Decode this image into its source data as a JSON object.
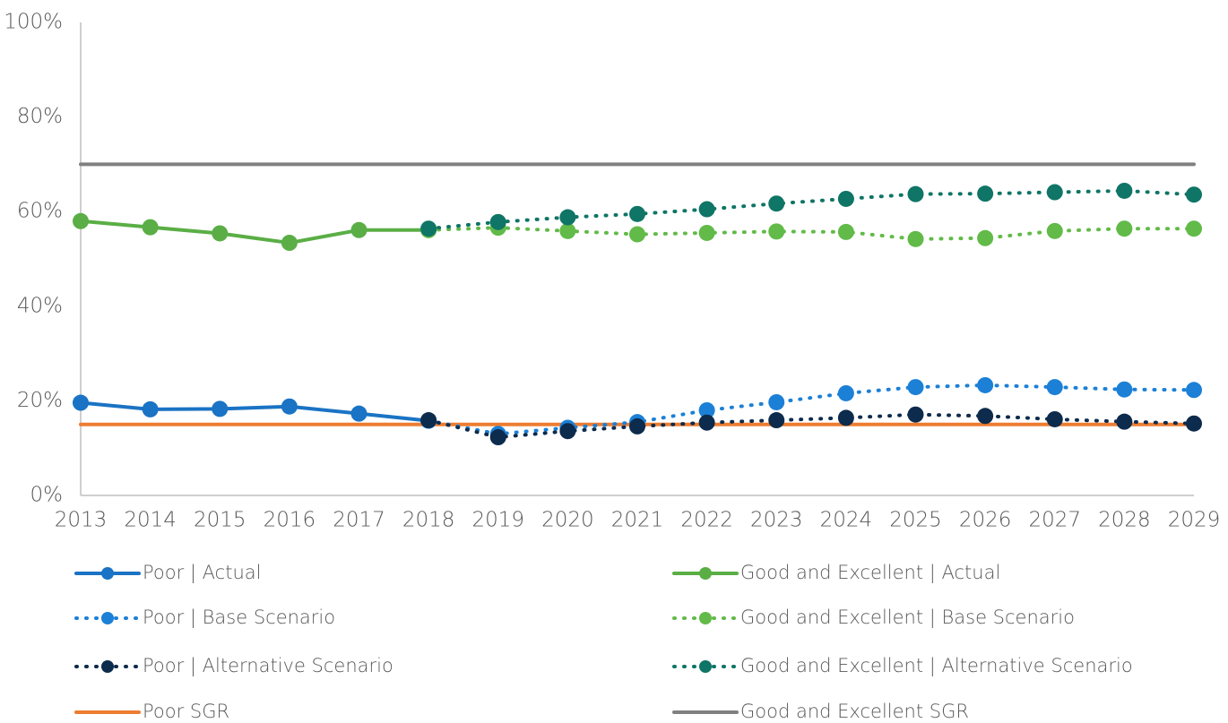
{
  "chart_data": {
    "type": "line",
    "categories": [
      "2013",
      "2014",
      "2015",
      "2016",
      "2017",
      "2018",
      "2019",
      "2020",
      "2021",
      "2022",
      "2023",
      "2024",
      "2025",
      "2026",
      "2027",
      "2028",
      "2029"
    ],
    "ylim": [
      0,
      100
    ],
    "yticks": [
      {
        "value": 0,
        "label": "0%"
      },
      {
        "value": 20,
        "label": "20%"
      },
      {
        "value": 40,
        "label": "40%"
      },
      {
        "value": 60,
        "label": "60%"
      },
      {
        "value": 80,
        "label": "80%"
      },
      {
        "value": 100,
        "label": "100%"
      }
    ],
    "grid": false,
    "legend": "bottom",
    "series": [
      {
        "name": "Poor | Actual",
        "color": "#1a73c4",
        "dash": false,
        "markers": true,
        "values": [
          19.6,
          18.2,
          18.3,
          18.8,
          17.3,
          15.8,
          null,
          null,
          null,
          null,
          null,
          null,
          null,
          null,
          null,
          null,
          null
        ]
      },
      {
        "name": "Poor | Base Scenario",
        "color": "#1c80d6",
        "dash": true,
        "markers": true,
        "values": [
          null,
          null,
          null,
          null,
          null,
          15.8,
          13.0,
          14.3,
          15.5,
          18.0,
          19.7,
          21.6,
          22.9,
          23.3,
          22.9,
          22.4,
          22.3
        ]
      },
      {
        "name": "Poor | Alternative Scenario",
        "color": "#0d2b4c",
        "dash": true,
        "markers": true,
        "values": [
          null,
          null,
          null,
          null,
          null,
          15.9,
          12.3,
          13.6,
          14.6,
          15.4,
          15.9,
          16.4,
          17.1,
          16.8,
          16.1,
          15.6,
          15.2
        ]
      },
      {
        "name": "Poor SGR",
        "color": "#ed7d31",
        "dash": false,
        "markers": false,
        "values": [
          15,
          15,
          15,
          15,
          15,
          15,
          15,
          15,
          15,
          15,
          15,
          15,
          15,
          15,
          15,
          15,
          15
        ]
      },
      {
        "name": "Good and Excellent | Actual",
        "color": "#5aae45",
        "dash": false,
        "markers": true,
        "values": [
          58.0,
          56.7,
          55.4,
          53.4,
          56.1,
          56.1,
          null,
          null,
          null,
          null,
          null,
          null,
          null,
          null,
          null,
          null,
          null
        ]
      },
      {
        "name": "Good and Excellent | Base Scenario",
        "color": "#62ba48",
        "dash": true,
        "markers": true,
        "values": [
          null,
          null,
          null,
          null,
          null,
          56.1,
          56.6,
          55.9,
          55.2,
          55.5,
          55.8,
          55.7,
          54.2,
          54.4,
          55.9,
          56.4,
          56.4
        ]
      },
      {
        "name": "Good and Excellent | Alternative Scenario",
        "color": "#0f7566",
        "dash": true,
        "markers": true,
        "values": [
          null,
          null,
          null,
          null,
          null,
          56.4,
          57.8,
          58.8,
          59.5,
          60.5,
          61.7,
          62.7,
          63.7,
          63.8,
          64.1,
          64.4,
          63.6
        ]
      },
      {
        "name": "Good and Excellent SGR",
        "color": "#808080",
        "dash": false,
        "markers": false,
        "values": [
          70,
          70,
          70,
          70,
          70,
          70,
          70,
          70,
          70,
          70,
          70,
          70,
          70,
          70,
          70,
          70,
          70
        ]
      }
    ]
  }
}
